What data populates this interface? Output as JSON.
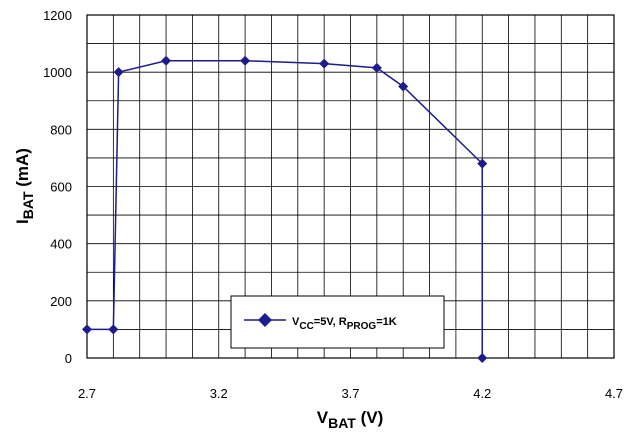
{
  "chart_data": {
    "type": "line",
    "xlabel": {
      "main": "V",
      "sub": "BAT",
      "unit": " (V)"
    },
    "ylabel": {
      "main": "I",
      "sub": "BAT",
      "unit": " (mA)"
    },
    "xlim": [
      2.7,
      4.7
    ],
    "ylim": [
      0,
      1200
    ],
    "x_ticks": [
      "2.7",
      "3.2",
      "3.7",
      "4.2",
      "4.7"
    ],
    "y_ticks": [
      "0",
      "200",
      "400",
      "600",
      "800",
      "1000",
      "1200"
    ],
    "x_minor_step": 0.1,
    "y_minor_step": 100,
    "grid": true,
    "legend_position": "bottom-center",
    "colors": {
      "series": "#1c1c8c",
      "grid": "#000000"
    },
    "series": [
      {
        "name": "V<sub>CC</sub>=5V, R<sub>PROG</sub>=1K",
        "name_parts": [
          {
            "text": "V",
            "sub": false
          },
          {
            "text": "CC",
            "sub": true
          },
          {
            "text": "=5V, R",
            "sub": false
          },
          {
            "text": "PROG",
            "sub": true
          },
          {
            "text": "=1K",
            "sub": false
          }
        ],
        "marker": "diamond",
        "x": [
          2.7,
          2.8,
          2.82,
          3.0,
          3.3,
          3.6,
          3.8,
          3.9,
          4.2,
          4.2
        ],
        "y": [
          100,
          100,
          1000,
          1040,
          1040,
          1030,
          1015,
          950,
          680,
          0
        ]
      }
    ]
  }
}
